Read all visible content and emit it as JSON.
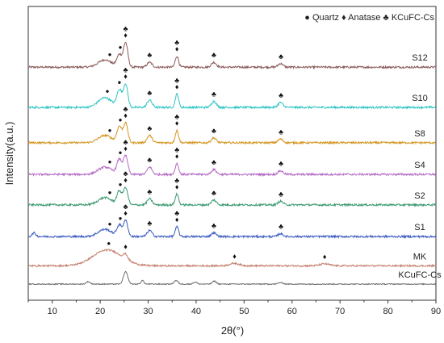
{
  "chart_data": {
    "type": "line",
    "title": "",
    "xlabel": "2θ(°)",
    "ylabel": "Intensity(a.u.)",
    "xlim": [
      5,
      90
    ],
    "x_ticks": [
      10,
      20,
      30,
      40,
      50,
      60,
      70,
      80,
      90
    ],
    "y_ticks": [],
    "grid": false,
    "legend": {
      "placement": "top-right",
      "entries": [
        {
          "symbol": "●",
          "label": "Quartz"
        },
        {
          "symbol": "♦",
          "label": "Anatase"
        },
        {
          "symbol": "♣",
          "label": "KCuFC-Cs"
        }
      ]
    },
    "series": [
      {
        "name": "S12",
        "color": "#8b5a5a",
        "baseline": 0.89,
        "noise": 0.008,
        "peaks": [
          [
            21.0,
            0.03,
            1.4
          ],
          [
            24.0,
            0.05,
            0.5
          ],
          [
            25.3,
            0.1,
            0.45
          ],
          [
            30.3,
            0.02,
            0.5
          ],
          [
            36.0,
            0.045,
            0.35
          ],
          [
            43.7,
            0.02,
            0.5
          ],
          [
            57.6,
            0.015,
            0.5
          ]
        ],
        "markers": [
          {
            "x": 22.0,
            "symbols": "●"
          },
          {
            "x": 24.2,
            "symbols": "●"
          },
          {
            "x": 25.3,
            "symbols": "♣♦"
          },
          {
            "x": 30.3,
            "symbols": "♣"
          },
          {
            "x": 36.0,
            "symbols": "♣♦"
          },
          {
            "x": 43.7,
            "symbols": "♣"
          },
          {
            "x": 57.7,
            "symbols": "♣"
          }
        ]
      },
      {
        "name": "S10",
        "color": "#2ec4c4",
        "baseline": 0.725,
        "noise": 0.008,
        "peaks": [
          [
            21.0,
            0.04,
            1.4
          ],
          [
            24.0,
            0.07,
            0.5
          ],
          [
            25.3,
            0.095,
            0.45
          ],
          [
            30.3,
            0.03,
            0.5
          ],
          [
            36.0,
            0.055,
            0.35
          ],
          [
            43.7,
            0.025,
            0.5
          ],
          [
            57.6,
            0.02,
            0.5
          ]
        ],
        "markers": [
          {
            "x": 21.5,
            "symbols": "●"
          },
          {
            "x": 24.0,
            "symbols": "●"
          },
          {
            "x": 25.3,
            "symbols": "♣♦"
          },
          {
            "x": 30.3,
            "symbols": "♣"
          },
          {
            "x": 36.0,
            "symbols": "♣♦"
          },
          {
            "x": 43.7,
            "symbols": "♣"
          },
          {
            "x": 57.7,
            "symbols": "♣"
          }
        ]
      },
      {
        "name": "S8",
        "color": "#d4951f",
        "baseline": 0.58,
        "noise": 0.008,
        "peaks": [
          [
            21.0,
            0.03,
            1.4
          ],
          [
            24.0,
            0.065,
            0.5
          ],
          [
            25.3,
            0.08,
            0.45
          ],
          [
            30.3,
            0.03,
            0.5
          ],
          [
            36.0,
            0.05,
            0.35
          ],
          [
            43.7,
            0.02,
            0.5
          ],
          [
            57.6,
            0.015,
            0.5
          ]
        ],
        "markers": [
          {
            "x": 22.0,
            "symbols": "●"
          },
          {
            "x": 24.2,
            "symbols": "●"
          },
          {
            "x": 25.3,
            "symbols": "♣♦"
          },
          {
            "x": 30.3,
            "symbols": "♣"
          },
          {
            "x": 36.0,
            "symbols": "♣♦"
          },
          {
            "x": 43.7,
            "symbols": "♣"
          },
          {
            "x": 57.7,
            "symbols": "♣"
          }
        ]
      },
      {
        "name": "S4",
        "color": "#b36ac4",
        "baseline": 0.45,
        "noise": 0.008,
        "peaks": [
          [
            21.0,
            0.03,
            1.4
          ],
          [
            24.0,
            0.06,
            0.5
          ],
          [
            25.3,
            0.075,
            0.45
          ],
          [
            30.3,
            0.03,
            0.5
          ],
          [
            36.0,
            0.045,
            0.35
          ],
          [
            43.7,
            0.02,
            0.5
          ],
          [
            57.6,
            0.015,
            0.5
          ]
        ],
        "markers": [
          {
            "x": 22.0,
            "symbols": "●"
          },
          {
            "x": 24.2,
            "symbols": "●"
          },
          {
            "x": 25.3,
            "symbols": "♣♦"
          },
          {
            "x": 30.3,
            "symbols": "♣"
          },
          {
            "x": 36.0,
            "symbols": "♣♦"
          },
          {
            "x": 43.7,
            "symbols": "♣"
          },
          {
            "x": 57.7,
            "symbols": "♣"
          }
        ]
      },
      {
        "name": "S2",
        "color": "#3c9a72",
        "baseline": 0.325,
        "noise": 0.008,
        "peaks": [
          [
            21.0,
            0.03,
            1.4
          ],
          [
            24.0,
            0.055,
            0.5
          ],
          [
            25.3,
            0.07,
            0.45
          ],
          [
            30.3,
            0.025,
            0.5
          ],
          [
            36.0,
            0.045,
            0.35
          ],
          [
            43.7,
            0.02,
            0.5
          ],
          [
            57.6,
            0.015,
            0.5
          ]
        ],
        "markers": [
          {
            "x": 22.0,
            "symbols": "●"
          },
          {
            "x": 24.2,
            "symbols": "●"
          },
          {
            "x": 25.3,
            "symbols": "♣♦"
          },
          {
            "x": 30.3,
            "symbols": "♣"
          },
          {
            "x": 36.0,
            "symbols": "♣♦"
          },
          {
            "x": 43.7,
            "symbols": "♣"
          },
          {
            "x": 57.7,
            "symbols": "♣"
          }
        ]
      },
      {
        "name": "S1",
        "color": "#3a5bbf",
        "baseline": 0.195,
        "noise": 0.008,
        "peaks": [
          [
            6.2,
            0.015,
            0.4
          ],
          [
            21.0,
            0.03,
            1.4
          ],
          [
            24.0,
            0.045,
            0.5
          ],
          [
            25.3,
            0.065,
            0.45
          ],
          [
            30.3,
            0.025,
            0.5
          ],
          [
            36.0,
            0.04,
            0.35
          ],
          [
            43.7,
            0.015,
            0.5
          ],
          [
            57.6,
            0.012,
            0.5
          ]
        ],
        "markers": [
          {
            "x": 22.0,
            "symbols": "●"
          },
          {
            "x": 24.2,
            "symbols": "●"
          },
          {
            "x": 25.3,
            "symbols": "♣♦"
          },
          {
            "x": 30.3,
            "symbols": "♣"
          },
          {
            "x": 36.0,
            "symbols": "♣♦"
          },
          {
            "x": 43.7,
            "symbols": "♣"
          },
          {
            "x": 57.7,
            "symbols": "♣"
          }
        ]
      },
      {
        "name": "MK",
        "color": "#c47f6f",
        "baseline": 0.075,
        "noise": 0.007,
        "peaks": [
          [
            21.5,
            0.065,
            3.0
          ],
          [
            25.3,
            0.02,
            0.45
          ],
          [
            48.0,
            0.01,
            1.0
          ],
          [
            66.8,
            0.008,
            1.0
          ]
        ],
        "markers": [
          {
            "x": 21.8,
            "symbols": "●"
          },
          {
            "x": 25.3,
            "symbols": "♦"
          },
          {
            "x": 48.0,
            "symbols": "♦"
          },
          {
            "x": 66.8,
            "symbols": "♦"
          }
        ]
      },
      {
        "name": "KCuFC-Cs",
        "color": "#6e6e6e",
        "baseline": 0.0,
        "noise": 0.004,
        "peaks": [
          [
            17.5,
            0.01,
            0.4
          ],
          [
            25.3,
            0.05,
            0.45
          ],
          [
            28.8,
            0.015,
            0.3
          ],
          [
            35.8,
            0.015,
            0.4
          ],
          [
            39.8,
            0.008,
            0.4
          ],
          [
            43.8,
            0.012,
            0.4
          ],
          [
            57.6,
            0.006,
            0.5
          ]
        ],
        "markers": []
      }
    ]
  }
}
